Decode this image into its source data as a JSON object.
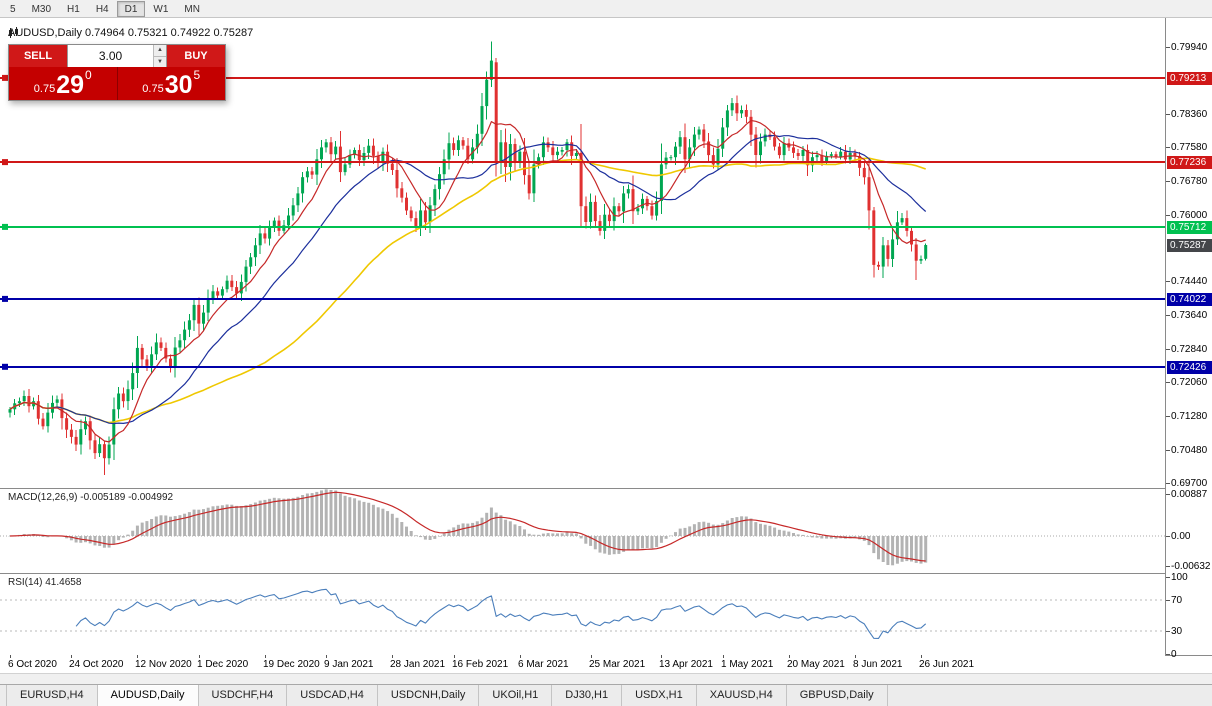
{
  "palette": {
    "bull": "#00a651",
    "bear": "#e03131",
    "macd_hist": "#b3b3b3",
    "macd_signal": "#c62828",
    "rsi_line": "#4a7ebb",
    "panel_red": "#c40000",
    "panel_button_red": "#d01818",
    "bid_badge": "#44464a"
  },
  "toolbar": {
    "timeframes": [
      "5",
      "M30",
      "H1",
      "H4",
      "D1",
      "W1",
      "MN"
    ],
    "active_timeframe": "D1"
  },
  "chart_header": {
    "title": "AUDUSD,Daily 0.74964 0.75321 0.74922 0.75287"
  },
  "trade_panel": {
    "sell_label": "SELL",
    "buy_label": "BUY",
    "volume": "3.00",
    "sell_price": {
      "prefix": "0.75",
      "big": "29",
      "sup": "0"
    },
    "buy_price": {
      "prefix": "0.75",
      "big": "30",
      "sup": "5"
    }
  },
  "chart_data": {
    "type": "candlestick",
    "symbol": "AUDUSD",
    "timeframe": "Daily",
    "last_ohlc": {
      "open": 0.74964,
      "high": 0.75321,
      "low": 0.74922,
      "close": 0.75287
    },
    "main": {
      "y_axis": {
        "top": 0.8062,
        "bottom": 0.6958,
        "labels": [
          {
            "text": "0.79940",
            "value": 0.7994
          },
          {
            "text": "0.78360",
            "value": 0.7836
          },
          {
            "text": "0.77580",
            "value": 0.7758
          },
          {
            "text": "0.76780",
            "value": 0.7678
          },
          {
            "text": "0.76000",
            "value": 0.76
          },
          {
            "text": "0.74440",
            "value": 0.7444
          },
          {
            "text": "0.73640",
            "value": 0.7364
          },
          {
            "text": "0.72840",
            "value": 0.7284
          },
          {
            "text": "0.72060",
            "value": 0.7206
          },
          {
            "text": "0.71280",
            "value": 0.7128
          },
          {
            "text": "0.70480",
            "value": 0.7048
          },
          {
            "text": "0.69700",
            "value": 0.697
          }
        ]
      },
      "closes": [
        0.7143,
        0.7157,
        0.7162,
        0.7174,
        0.715,
        0.7162,
        0.7121,
        0.7103,
        0.7135,
        0.7158,
        0.7166,
        0.7122,
        0.7095,
        0.7078,
        0.706,
        0.7096,
        0.7115,
        0.707,
        0.704,
        0.7061,
        0.7028,
        0.706,
        0.7143,
        0.718,
        0.7162,
        0.719,
        0.7228,
        0.7287,
        0.726,
        0.7245,
        0.7272,
        0.73,
        0.7287,
        0.7262,
        0.724,
        0.7288,
        0.7305,
        0.733,
        0.7352,
        0.7388,
        0.7344,
        0.737,
        0.7402,
        0.742,
        0.741,
        0.7425,
        0.7445,
        0.743,
        0.7415,
        0.7442,
        0.7478,
        0.75,
        0.7528,
        0.7556,
        0.7544,
        0.757,
        0.7586,
        0.7562,
        0.7575,
        0.7598,
        0.7622,
        0.765,
        0.7688,
        0.7702,
        0.7694,
        0.773,
        0.7758,
        0.777,
        0.7742,
        0.776,
        0.77,
        0.7718,
        0.774,
        0.7752,
        0.7728,
        0.7745,
        0.7762,
        0.7738,
        0.7722,
        0.7748,
        0.772,
        0.7705,
        0.7662,
        0.764,
        0.761,
        0.7592,
        0.757,
        0.761,
        0.7582,
        0.7622,
        0.766,
        0.7695,
        0.773,
        0.7768,
        0.7752,
        0.7775,
        0.7762,
        0.773,
        0.7758,
        0.779,
        0.7855,
        0.7917,
        0.7962,
        0.7725,
        0.777,
        0.7712,
        0.7766,
        0.7724,
        0.7748,
        0.7693,
        0.765,
        0.7718,
        0.7735,
        0.777,
        0.7758,
        0.774,
        0.7748,
        0.7752,
        0.777,
        0.7738,
        0.7745,
        0.762,
        0.7583,
        0.763,
        0.7585,
        0.7562,
        0.76,
        0.7585,
        0.762,
        0.7608,
        0.765,
        0.766,
        0.7608,
        0.7615,
        0.7637,
        0.762,
        0.7598,
        0.7632,
        0.7718,
        0.7734,
        0.7735,
        0.776,
        0.7782,
        0.773,
        0.7758,
        0.7788,
        0.78,
        0.7772,
        0.774,
        0.7718,
        0.7755,
        0.7805,
        0.7845,
        0.7862,
        0.7838,
        0.7846,
        0.783,
        0.7788,
        0.774,
        0.7772,
        0.7788,
        0.7782,
        0.776,
        0.774,
        0.7768,
        0.7758,
        0.7745,
        0.7738,
        0.7752,
        0.7716,
        0.7735,
        0.774,
        0.7726,
        0.7738,
        0.7742,
        0.7736,
        0.7748,
        0.773,
        0.7745,
        0.7738,
        0.771,
        0.7688,
        0.761,
        0.7482,
        0.7478,
        0.7528,
        0.7496,
        0.7542,
        0.7582,
        0.7592,
        0.7562,
        0.753,
        0.7492,
        0.7496,
        0.75287
      ],
      "candle_overrides": {
        "20": [
          0.7061,
          0.7068,
          0.6988,
          0.7028
        ],
        "102": [
          0.7917,
          0.8007,
          0.79,
          0.7962
        ],
        "103": [
          0.7958,
          0.7968,
          0.769,
          0.7725
        ],
        "183": [
          0.761,
          0.7618,
          0.7452,
          0.7482
        ],
        "192": [
          0.753,
          0.7545,
          0.7446,
          0.7492
        ],
        "194": [
          0.74964,
          0.75321,
          0.74922,
          0.75287
        ]
      },
      "moving_averages": [
        {
          "period": 8,
          "color": "#c62828"
        },
        {
          "period": 21,
          "color": "#1c2f9c"
        },
        {
          "period": 55,
          "color": "#efc800"
        }
      ],
      "hlines": [
        {
          "value": 0.79213,
          "label": "0.79213",
          "color": "#d01818"
        },
        {
          "value": 0.77236,
          "label": "0.77236",
          "color": "#d01818"
        },
        {
          "value": 0.75712,
          "label": "0.75712",
          "color": "#00c050"
        },
        {
          "value": 0.74022,
          "label": "0.74022",
          "color": "#0000a8"
        },
        {
          "value": 0.72426,
          "label": "0.72426",
          "color": "#0000a8"
        }
      ],
      "bid_badge": {
        "text": "0.75287",
        "value": 0.75287
      }
    },
    "macd": {
      "label": "MACD(12,26,9) -0.005189 -0.004992",
      "main_value": -0.005189,
      "signal_value": -0.004992,
      "params": [
        12,
        26,
        9
      ],
      "y_axis": {
        "max": 0.00887,
        "min": -0.00632,
        "labels": [
          {
            "text": "0.00887",
            "value": 0.00887
          },
          {
            "text": "0.00",
            "value": 0
          },
          {
            "text": "-0.00632",
            "value": -0.00632
          }
        ]
      }
    },
    "rsi": {
      "label": "RSI(14) 41.4658",
      "value": 41.4658,
      "period": 14,
      "levels": [
        70,
        30
      ],
      "y_axis": {
        "labels": [
          {
            "text": "100",
            "value": 100
          },
          {
            "text": "70",
            "value": 70
          },
          {
            "text": "30",
            "value": 30
          },
          {
            "text": "0",
            "value": 0
          }
        ]
      }
    },
    "x_axis": {
      "tick_indices": [
        0,
        13,
        27,
        40,
        54,
        67,
        81,
        94,
        108,
        123,
        138,
        151,
        165,
        179,
        193
      ],
      "labels": [
        "6 Oct 2020",
        "24 Oct 2020",
        "12 Nov 2020",
        "1 Dec 2020",
        "19 Dec 2020",
        "9 Jan 2021",
        "28 Jan 2021",
        "16 Feb 2021",
        "6 Mar 2021",
        "25 Mar 2021",
        "13 Apr 2021",
        "1 May 2021",
        "20 May 2021",
        "8 Jun 2021",
        "26 Jun 2021"
      ]
    }
  },
  "tabs": {
    "active_index": 1,
    "items": [
      "EURUSD,H4",
      "AUDUSD,Daily",
      "USDCHF,H4",
      "USDCAD,H4",
      "USDCNH,Daily",
      "UKOil,H1",
      "DJ30,H1",
      "USDX,H1",
      "XAUUSD,H4",
      "GBPUSD,Daily"
    ]
  }
}
